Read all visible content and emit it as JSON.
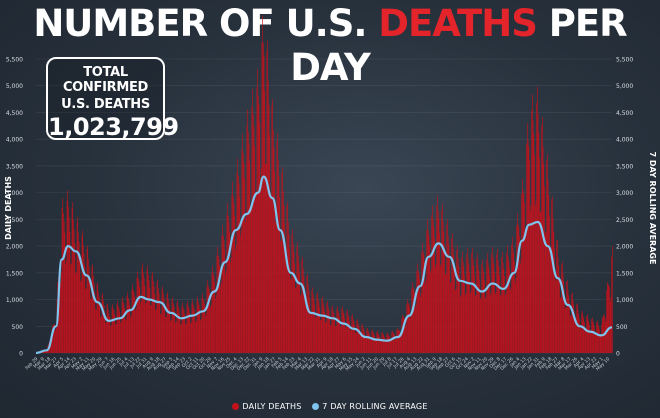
{
  "title": {
    "part1": "NUMBER OF U.S. ",
    "part2": "DEATHS",
    "part3": " PER DAY"
  },
  "stat_box": {
    "line1": "TOTAL CONFIRMED",
    "line2": "U.S. DEATHS",
    "value": "1,023,799"
  },
  "colors": {
    "bars": "#c4121c",
    "line": "#7ec4ec",
    "title_accent": "#e3242b",
    "background": "#27313c"
  },
  "chart_data": {
    "type": "bar",
    "title": "NUMBER OF U.S. DEATHS PER DAY",
    "ylabel": "DAILY DEATHS",
    "y2label": "7 DAY ROLLING AVERAGE",
    "ylim": [
      0,
      5500
    ],
    "yticks": [
      "0",
      "500",
      "1,000",
      "1,500",
      "2,000",
      "2,500",
      "3,000",
      "3,500",
      "4,000",
      "4,500",
      "5,000",
      "5,500"
    ],
    "x_range": [
      "2020-02-29",
      "2022-05-16"
    ],
    "legend_position": "bottom",
    "series": [
      {
        "name": "DAILY DEATHS",
        "kind": "bar",
        "color": "#c4121c",
        "dates": [
          "2020-02-29",
          "2020-03-15",
          "2020-03-28",
          "2020-04-05",
          "2020-04-14",
          "2020-04-25",
          "2020-05-10",
          "2020-05-25",
          "2020-06-10",
          "2020-06-25",
          "2020-07-10",
          "2020-07-25",
          "2020-08-05",
          "2020-08-20",
          "2020-09-05",
          "2020-09-20",
          "2020-10-05",
          "2020-10-20",
          "2020-11-05",
          "2020-11-20",
          "2020-12-05",
          "2020-12-20",
          "2021-01-05",
          "2021-01-13",
          "2021-01-25",
          "2021-02-05",
          "2021-02-20",
          "2021-03-05",
          "2021-03-20",
          "2021-04-05",
          "2021-04-20",
          "2021-05-05",
          "2021-05-20",
          "2021-06-05",
          "2021-06-20",
          "2021-07-05",
          "2021-07-20",
          "2021-08-05",
          "2021-08-20",
          "2021-09-01",
          "2021-09-15",
          "2021-09-30",
          "2021-10-15",
          "2021-10-30",
          "2021-11-15",
          "2021-11-30",
          "2021-12-15",
          "2021-12-30",
          "2022-01-10",
          "2022-01-20",
          "2022-02-01",
          "2022-02-15",
          "2022-03-01",
          "2022-03-15",
          "2022-04-01",
          "2022-04-15",
          "2022-05-01",
          "2022-05-16"
        ],
        "values": [
          0,
          60,
          650,
          2300,
          2450,
          2100,
          1650,
          1050,
          700,
          800,
          950,
          1350,
          1300,
          1050,
          850,
          750,
          800,
          900,
          1400,
          2100,
          2800,
          3600,
          4300,
          5300,
          3800,
          3000,
          1900,
          1550,
          1000,
          850,
          700,
          700,
          550,
          380,
          330,
          300,
          380,
          900,
          1500,
          2100,
          2400,
          1900,
          1500,
          1600,
          1400,
          1600,
          1500,
          1800,
          2600,
          3800,
          4000,
          2900,
          1600,
          1050,
          650,
          550,
          450,
          1600
        ]
      },
      {
        "name": "7 DAY ROLLING AVERAGE",
        "kind": "line",
        "color": "#7ec4ec",
        "dates": [
          "2020-02-29",
          "2020-03-15",
          "2020-03-28",
          "2020-04-05",
          "2020-04-14",
          "2020-04-25",
          "2020-05-10",
          "2020-05-25",
          "2020-06-10",
          "2020-06-25",
          "2020-07-10",
          "2020-07-25",
          "2020-08-05",
          "2020-08-20",
          "2020-09-05",
          "2020-09-20",
          "2020-10-05",
          "2020-10-20",
          "2020-11-05",
          "2020-11-20",
          "2020-12-05",
          "2020-12-20",
          "2021-01-05",
          "2021-01-13",
          "2021-01-25",
          "2021-02-05",
          "2021-02-20",
          "2021-03-05",
          "2021-03-20",
          "2021-04-05",
          "2021-04-20",
          "2021-05-05",
          "2021-05-20",
          "2021-06-05",
          "2021-06-20",
          "2021-07-05",
          "2021-07-20",
          "2021-08-05",
          "2021-08-20",
          "2021-09-01",
          "2021-09-15",
          "2021-09-30",
          "2021-10-15",
          "2021-10-30",
          "2021-11-15",
          "2021-11-30",
          "2021-12-15",
          "2021-12-30",
          "2022-01-10",
          "2022-01-20",
          "2022-02-01",
          "2022-02-15",
          "2022-03-01",
          "2022-03-15",
          "2022-04-01",
          "2022-04-15",
          "2022-05-01",
          "2022-05-16"
        ],
        "values": [
          0,
          50,
          500,
          1750,
          2000,
          1900,
          1450,
          950,
          600,
          650,
          800,
          1050,
          1000,
          950,
          750,
          650,
          700,
          780,
          1150,
          1700,
          2300,
          2600,
          3000,
          3300,
          2900,
          2300,
          1500,
          1300,
          750,
          700,
          650,
          550,
          450,
          300,
          250,
          230,
          300,
          700,
          1250,
          1800,
          2050,
          1800,
          1350,
          1300,
          1150,
          1300,
          1200,
          1500,
          2100,
          2400,
          2450,
          2000,
          1400,
          900,
          500,
          400,
          330,
          480
        ]
      }
    ]
  },
  "legend": {
    "deaths": "DAILY DEATHS",
    "average": "7 DAY ROLLING AVERAGE"
  }
}
